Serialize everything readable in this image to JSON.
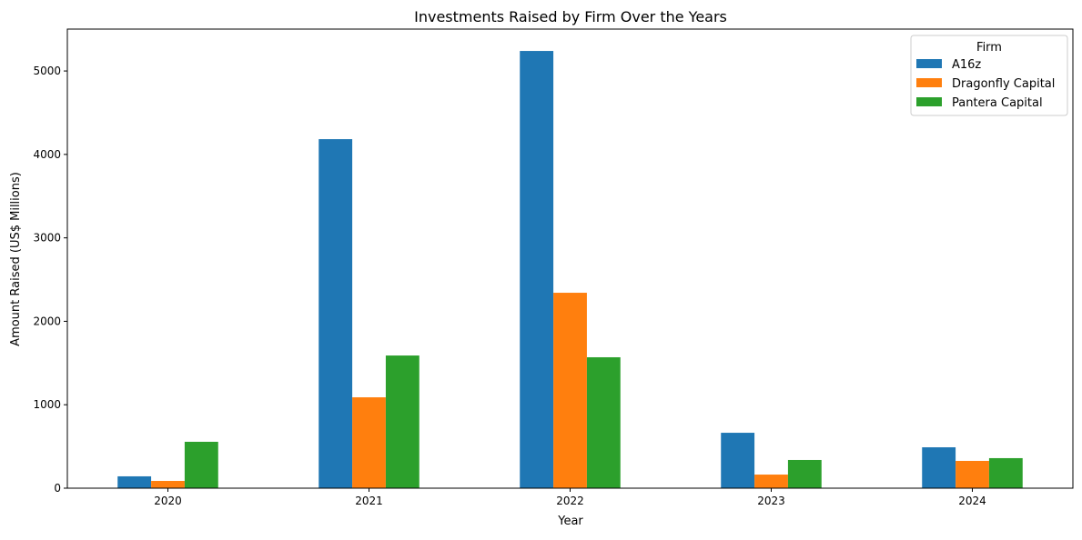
{
  "chart_data": {
    "type": "bar",
    "title": "Investments Raised by Firm Over the Years",
    "xlabel": "Year",
    "ylabel": "Amount Raised (US$ Millions)",
    "categories": [
      "2020",
      "2021",
      "2022",
      "2023",
      "2024"
    ],
    "ylim": [
      0,
      5502
    ],
    "yticks": [
      0,
      1000,
      2000,
      3000,
      4000,
      5000
    ],
    "grid": false,
    "legend": {
      "title": "Firm",
      "placement": "top-right"
    },
    "series": [
      {
        "name": "A16z",
        "color": "#1f77b4",
        "values": [
          142,
          4183,
          5240,
          664,
          490
        ]
      },
      {
        "name": "Dragonfly Capital",
        "color": "#ff7f0e",
        "values": [
          87,
          1089,
          2342,
          163,
          327
        ]
      },
      {
        "name": "Pantera Capital",
        "color": "#2ca02c",
        "values": [
          556,
          1590,
          1569,
          338,
          360
        ]
      }
    ]
  }
}
